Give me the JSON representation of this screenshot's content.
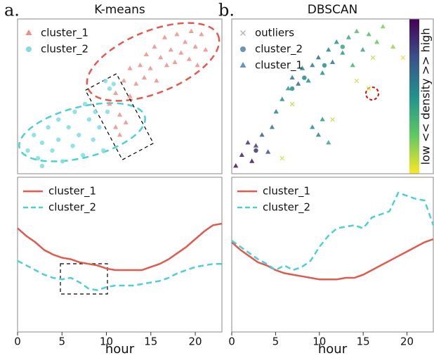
{
  "chart_data": [
    {
      "type": "scatter",
      "panel_label": "a.",
      "title": "K-means",
      "xlim": [
        0,
        1
      ],
      "ylim": [
        0,
        1
      ],
      "series": [
        {
          "name": "cluster_1",
          "marker": "triangle",
          "color": "#ec8f86",
          "x": [
            0.45,
            0.48,
            0.5,
            0.52,
            0.55,
            0.55,
            0.58,
            0.6,
            0.62,
            0.63,
            0.65,
            0.67,
            0.68,
            0.7,
            0.72,
            0.73,
            0.75,
            0.77,
            0.78,
            0.8,
            0.82,
            0.84,
            0.85,
            0.87,
            0.9,
            0.92,
            0.88,
            0.5,
            0.48,
            0.53
          ],
          "values": [
            0.45,
            0.52,
            0.38,
            0.6,
            0.5,
            0.68,
            0.58,
            0.7,
            0.62,
            0.77,
            0.68,
            0.82,
            0.6,
            0.75,
            0.88,
            0.7,
            0.8,
            0.72,
            0.9,
            0.78,
            0.85,
            0.74,
            0.92,
            0.82,
            0.9,
            0.8,
            0.7,
            0.25,
            0.3,
            0.33
          ]
        },
        {
          "name": "cluster_2",
          "marker": "circle",
          "color": "#7fdde0",
          "x": [
            0.05,
            0.08,
            0.1,
            0.12,
            0.15,
            0.17,
            0.2,
            0.22,
            0.25,
            0.27,
            0.3,
            0.32,
            0.35,
            0.37,
            0.4,
            0.42,
            0.44,
            0.45,
            0.43,
            0.47,
            0.38,
            0.2,
            0.28,
            0.12,
            0.33
          ],
          "values": [
            0.15,
            0.25,
            0.1,
            0.2,
            0.3,
            0.15,
            0.22,
            0.08,
            0.3,
            0.18,
            0.25,
            0.12,
            0.35,
            0.22,
            0.3,
            0.15,
            0.4,
            0.55,
            0.6,
            0.58,
            0.4,
            0.35,
            0.4,
            0.05,
            0.45
          ]
        }
      ]
    },
    {
      "type": "scatter",
      "panel_label": "b.",
      "title": "DBSCAN",
      "xlim": [
        0,
        1
      ],
      "ylim": [
        0,
        1
      ],
      "colorbar": {
        "label": "low << density >> high",
        "colormap": "viridis"
      },
      "series": [
        {
          "name": "outliers",
          "marker": "x",
          "color": "#b0b0b0",
          "x": [
            0.68,
            0.62,
            0.5,
            0.3,
            0.85,
            0.7,
            0.25
          ],
          "values": [
            0.55,
            0.6,
            0.35,
            0.45,
            0.75,
            0.75,
            0.1
          ],
          "density": [
            0.05,
            0.08,
            0.1,
            0.12,
            0.05,
            0.1,
            0.08
          ]
        },
        {
          "name": "cluster_2",
          "marker": "circle",
          "color": "#6a94b8",
          "x": [
            0.3,
            0.36,
            0.46,
            0.12,
            0.55
          ],
          "values": [
            0.55,
            0.62,
            0.7,
            0.15,
            0.82
          ],
          "density": [
            0.5,
            0.55,
            0.5,
            0.85,
            0.4
          ]
        },
        {
          "name": "cluster_1",
          "marker": "triangle",
          "color": "#6a94b8",
          "x": [
            0.05,
            0.08,
            0.1,
            0.12,
            0.15,
            0.18,
            0.2,
            0.22,
            0.25,
            0.28,
            0.3,
            0.33,
            0.35,
            0.38,
            0.4,
            0.43,
            0.45,
            0.48,
            0.5,
            0.52,
            0.55,
            0.58,
            0.6,
            0.62,
            0.65,
            0.68,
            0.72,
            0.75,
            0.8,
            0.4,
            0.43,
            0.45,
            0.48,
            0.02
          ],
          "values": [
            0.12,
            0.2,
            0.08,
            0.18,
            0.25,
            0.14,
            0.3,
            0.4,
            0.48,
            0.55,
            0.62,
            0.58,
            0.68,
            0.6,
            0.7,
            0.75,
            0.65,
            0.8,
            0.72,
            0.85,
            0.78,
            0.88,
            0.7,
            0.92,
            0.8,
            0.9,
            0.85,
            0.95,
            0.82,
            0.3,
            0.25,
            0.35,
            0.2,
            0.05
          ],
          "density": [
            0.9,
            0.85,
            0.95,
            0.8,
            0.7,
            0.75,
            0.6,
            0.55,
            0.5,
            0.45,
            0.6,
            0.65,
            0.55,
            0.5,
            0.6,
            0.65,
            0.5,
            0.55,
            0.6,
            0.5,
            0.45,
            0.4,
            0.35,
            0.3,
            0.4,
            0.3,
            0.25,
            0.2,
            0.15,
            0.5,
            0.55,
            0.45,
            0.4,
            0.95
          ]
        }
      ]
    },
    {
      "type": "line",
      "x_label": "hour",
      "xlim": [
        0,
        23
      ],
      "ylim": [
        0,
        1
      ],
      "xticks": [
        0,
        5,
        10,
        15,
        20
      ],
      "x": [
        0,
        1,
        2,
        3,
        4,
        5,
        6,
        7,
        8,
        9,
        10,
        11,
        12,
        13,
        14,
        15,
        16,
        17,
        18,
        19,
        20,
        21,
        22,
        23
      ],
      "series": [
        {
          "name": "cluster_1",
          "color": "#e05a4e",
          "linestyle": "solid",
          "values": [
            0.67,
            0.62,
            0.58,
            0.53,
            0.5,
            0.48,
            0.47,
            0.45,
            0.44,
            0.43,
            0.41,
            0.4,
            0.4,
            0.4,
            0.4,
            0.42,
            0.44,
            0.47,
            0.51,
            0.55,
            0.6,
            0.65,
            0.69,
            0.7
          ]
        },
        {
          "name": "cluster_2",
          "color": "#4ccfd6",
          "linestyle": "dashed",
          "values": [
            0.46,
            0.43,
            0.4,
            0.37,
            0.35,
            0.34,
            0.35,
            0.32,
            0.28,
            0.27,
            0.29,
            0.3,
            0.3,
            0.3,
            0.31,
            0.32,
            0.33,
            0.35,
            0.38,
            0.4,
            0.42,
            0.43,
            0.44,
            0.44
          ]
        }
      ]
    },
    {
      "type": "line",
      "x_label": "hour",
      "xlim": [
        0,
        23
      ],
      "ylim": [
        0,
        1
      ],
      "xticks": [
        0,
        5,
        10,
        15,
        20
      ],
      "x": [
        0,
        1,
        2,
        3,
        4,
        5,
        6,
        7,
        8,
        9,
        10,
        11,
        12,
        13,
        14,
        15,
        16,
        17,
        18,
        19,
        20,
        21,
        22,
        23
      ],
      "series": [
        {
          "name": "cluster_1",
          "color": "#e05a4e",
          "linestyle": "solid",
          "values": [
            0.58,
            0.53,
            0.49,
            0.45,
            0.43,
            0.4,
            0.38,
            0.37,
            0.36,
            0.35,
            0.34,
            0.34,
            0.34,
            0.35,
            0.35,
            0.37,
            0.4,
            0.43,
            0.46,
            0.49,
            0.52,
            0.55,
            0.58,
            0.6
          ]
        },
        {
          "name": "cluster_2",
          "color": "#4ccfd6",
          "linestyle": "dashed",
          "values": [
            0.59,
            0.55,
            0.51,
            0.47,
            0.44,
            0.4,
            0.43,
            0.4,
            0.42,
            0.46,
            0.55,
            0.62,
            0.67,
            0.68,
            0.69,
            0.67,
            0.74,
            0.76,
            0.78,
            0.9,
            0.88,
            0.86,
            0.85,
            0.69
          ]
        }
      ]
    }
  ]
}
